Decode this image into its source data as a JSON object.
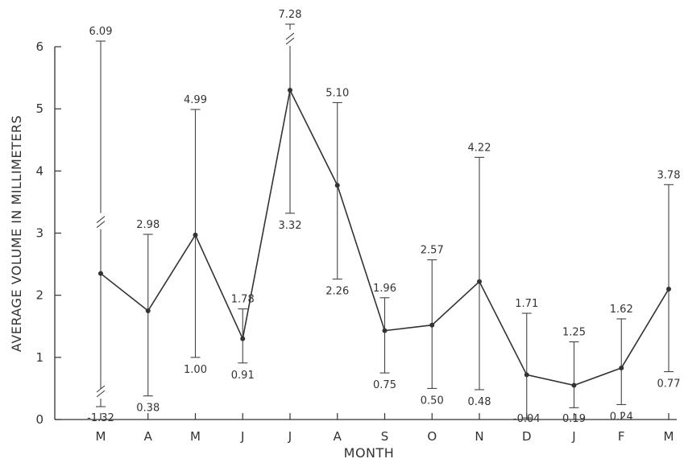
{
  "chart_data": {
    "type": "line",
    "xlabel": "MONTH",
    "ylabel": "AVERAGE VOLUME IN MILLIMETERS",
    "categories": [
      "M",
      "A",
      "M",
      "J",
      "J",
      "A",
      "S",
      "O",
      "N",
      "D",
      "J",
      "F",
      "M"
    ],
    "ylim": [
      0,
      6
    ],
    "yticks": [
      0,
      1,
      2,
      3,
      4,
      5,
      6
    ],
    "grid": false,
    "legend": "none",
    "series": [
      {
        "values": [
          2.35,
          1.75,
          2.97,
          1.3,
          5.3,
          3.77,
          1.43,
          1.52,
          2.22,
          0.72,
          0.55,
          0.83,
          2.1
        ],
        "upper": [
          6.09,
          2.98,
          4.99,
          1.78,
          7.28,
          5.1,
          1.96,
          2.57,
          4.22,
          1.71,
          1.25,
          1.62,
          3.78
        ],
        "lower": [
          -1.32,
          0.38,
          1.0,
          0.91,
          3.32,
          2.26,
          0.75,
          0.5,
          0.48,
          -0.04,
          0.19,
          0.24,
          0.77
        ],
        "upper_labels": [
          "6.09",
          "2.98",
          "4.99",
          "1.78",
          "7.28",
          "5.10",
          "1.96",
          "2.57",
          "4.22",
          "1.71",
          "1.25",
          "1.62",
          "3.78"
        ],
        "lower_labels": [
          "-1.32",
          "0.38",
          "1.00",
          "0.91",
          "3.32",
          "2.26",
          "0.75",
          "0.50",
          "0.48",
          "-0.04",
          "0.19",
          "0.24",
          "0.77"
        ]
      }
    ]
  }
}
